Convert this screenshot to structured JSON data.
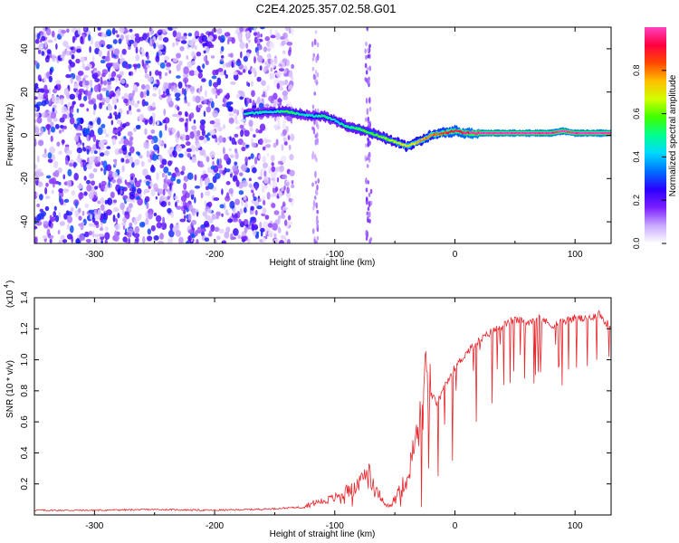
{
  "figure_title": "C2E4.2025.357.02.58.G01",
  "colors": {
    "snr_line": "#e8262c",
    "spectro_purple": "#6a2be0",
    "colorbar": [
      "#ffffff",
      "#c8a8ff",
      "#7a1fff",
      "#2a00ff",
      "#0070ff",
      "#00d8ff",
      "#00ff90",
      "#40ff00",
      "#d0ff00",
      "#ffc000",
      "#ff4a00",
      "#ff0040",
      "#ff40c0"
    ]
  },
  "chart_data": [
    {
      "type": "heatmap",
      "title": "C2E4.2025.357.02.58.G01",
      "xlabel": "Height of straight line (km)",
      "ylabel": "Frequency (Hz)",
      "xlim": [
        -350,
        130
      ],
      "ylim": [
        -50,
        50
      ],
      "x_ticks": [
        -300,
        -200,
        -100,
        0,
        100
      ],
      "x_tick_labels": [
        "-300",
        "-200",
        "-100",
        "0",
        "100"
      ],
      "y_ticks": [
        -40,
        -20,
        0,
        20,
        40
      ],
      "y_tick_labels": [
        "-40",
        "-20",
        "0",
        "20",
        "40"
      ],
      "colorbar": {
        "label": "Normalized spectral amplitude",
        "range": [
          0,
          1
        ],
        "ticks": [
          0.0,
          0.2,
          0.4,
          0.6,
          0.8
        ],
        "tick_labels": [
          "0.0",
          "0.2",
          "0.4",
          "0.6",
          "0.8"
        ]
      },
      "noise_region": {
        "x_from": -350,
        "x_to": -135,
        "amplitude": "low (0.1-0.3)"
      },
      "interference_columns": [
        {
          "x": -116,
          "amplitude": 0.15
        },
        {
          "x": -72,
          "amplitude": 0.2
        }
      ],
      "signal_ridge": {
        "x": [
          -175,
          -150,
          -140,
          -130,
          -120,
          -110,
          -100,
          -90,
          -80,
          -70,
          -60,
          -50,
          -40,
          -30,
          -20,
          -10,
          0,
          10,
          20,
          40,
          60,
          80,
          90,
          100,
          120,
          130
        ],
        "frequency": [
          10,
          11,
          11,
          10,
          9,
          9,
          7,
          4,
          3,
          1,
          -1,
          -3,
          -5,
          -3,
          0,
          1,
          2,
          1,
          1,
          1,
          1,
          1,
          2,
          1,
          1,
          1
        ],
        "amplitude": [
          0.5,
          0.45,
          0.55,
          0.5,
          0.45,
          0.5,
          0.45,
          0.5,
          0.55,
          0.55,
          0.6,
          0.65,
          0.7,
          0.75,
          0.8,
          0.85,
          0.9,
          0.95,
          1.0,
          1.0,
          1.0,
          1.0,
          1.0,
          1.0,
          1.0,
          1.0
        ]
      }
    },
    {
      "type": "line",
      "xlabel": "Height of straight line (km)",
      "ylabel": "SNR (10 * v/v)",
      "y_scale_label": "(x10",
      "y_scale_exponent": "4",
      "y_scale": 10000,
      "xlim": [
        -350,
        130
      ],
      "ylim": [
        0,
        1.4
      ],
      "x_ticks": [
        -300,
        -200,
        -100,
        0,
        100
      ],
      "x_tick_labels": [
        "-300",
        "-200",
        "-100",
        "0",
        "100"
      ],
      "y_ticks": [
        0.2,
        0.4,
        0.6,
        0.8,
        1.0,
        1.2,
        1.4
      ],
      "y_tick_labels": [
        "0.2",
        "0.4",
        "0.6",
        "0.8",
        "1.0",
        "1.2",
        "1.4"
      ],
      "series": [
        {
          "name": "SNR",
          "x": [
            -350,
            -300,
            -250,
            -200,
            -170,
            -150,
            -130,
            -120,
            -110,
            -100,
            -90,
            -80,
            -75,
            -72,
            -68,
            -62,
            -55,
            -50,
            -45,
            -40,
            -36,
            -32,
            -28,
            -25,
            -20,
            -15,
            -10,
            -5,
            0,
            5,
            10,
            20,
            30,
            40,
            50,
            60,
            70,
            80,
            90,
            100,
            110,
            120,
            125,
            130
          ],
          "values": [
            0.03,
            0.03,
            0.035,
            0.03,
            0.035,
            0.04,
            0.05,
            0.07,
            0.09,
            0.11,
            0.15,
            0.18,
            0.26,
            0.3,
            0.2,
            0.12,
            0.05,
            0.1,
            0.18,
            0.22,
            0.36,
            0.5,
            0.62,
            0.85,
            0.78,
            0.72,
            0.8,
            0.88,
            0.95,
            1.0,
            1.05,
            1.12,
            1.18,
            1.22,
            1.26,
            1.24,
            1.28,
            1.22,
            1.25,
            1.27,
            1.26,
            1.3,
            1.24,
            1.22
          ],
          "dips": [
            {
              "x": -28,
              "value": 0.05
            },
            {
              "x": -22,
              "value": 0.3
            },
            {
              "x": -14,
              "value": 0.25
            },
            {
              "x": -2,
              "value": 0.35
            },
            {
              "x": 18,
              "value": 0.6
            },
            {
              "x": 31,
              "value": 0.72
            },
            {
              "x": 46,
              "value": 0.85
            },
            {
              "x": 58,
              "value": 0.88
            },
            {
              "x": 71,
              "value": 0.92
            },
            {
              "x": 86,
              "value": 0.95
            },
            {
              "x": 101,
              "value": 0.95
            },
            {
              "x": 118,
              "value": 1.0
            },
            {
              "x": 128,
              "value": 1.02
            }
          ]
        }
      ]
    }
  ]
}
